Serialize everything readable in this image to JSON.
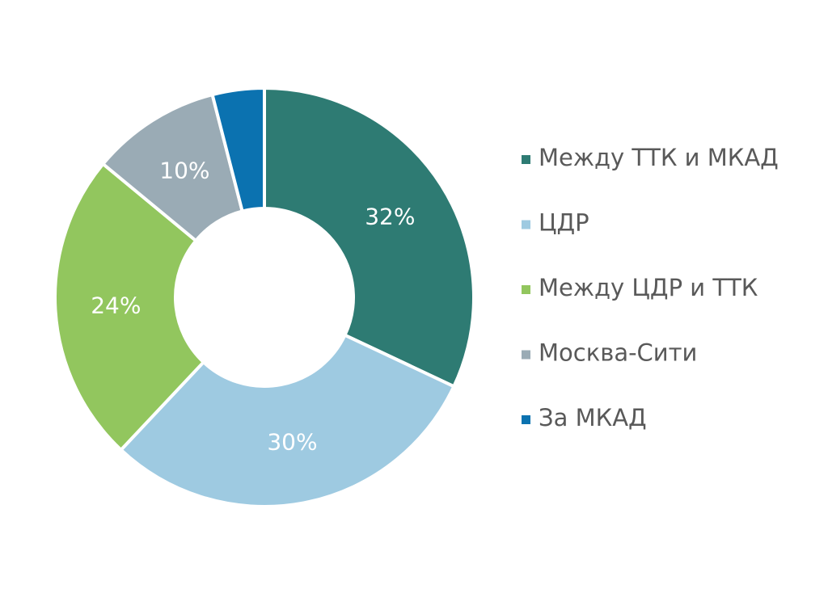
{
  "chart_data": {
    "type": "pie",
    "categories": [
      "Между ТТК и МКАД",
      "ЦДР",
      "Между ЦДР и ТТК",
      "Москва-Сити",
      "За МКАД"
    ],
    "values": [
      32,
      30,
      24,
      10,
      4
    ],
    "value_labels": [
      "32%",
      "30%",
      "24%",
      "10%",
      null
    ],
    "colors": [
      "#2e7b73",
      "#9ecae1",
      "#92c65e",
      "#9aabb5",
      "#0b72b0"
    ],
    "legend": "right"
  }
}
